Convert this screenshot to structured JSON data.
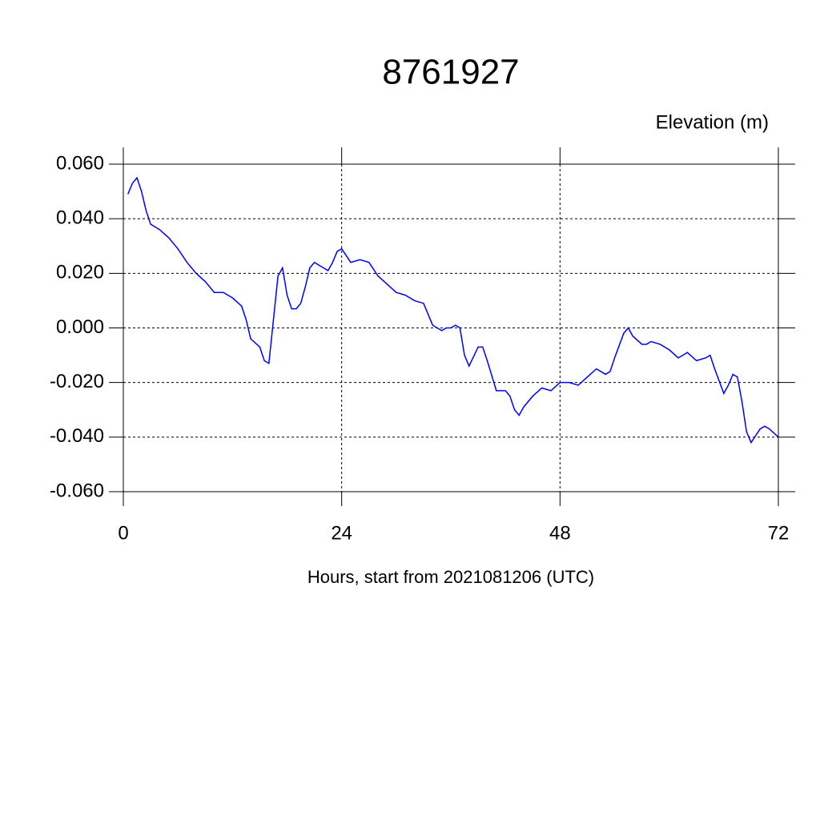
{
  "chart_data": {
    "type": "line",
    "title": "8761927",
    "ylabel": "Elevation (m)",
    "xlabel": "Hours, start from 2021081206 (UTC)",
    "x": [
      0.5,
      1,
      1.5,
      2,
      2.5,
      3,
      4,
      5,
      6,
      7,
      8,
      9,
      10,
      11,
      12,
      13,
      13.5,
      14,
      15,
      15.5,
      16,
      17,
      17.5,
      18,
      18.5,
      19,
      19.5,
      20,
      20.5,
      21,
      21.5,
      22,
      22.5,
      23,
      23.5,
      24,
      25,
      26,
      27,
      28,
      29,
      30,
      31,
      32,
      33,
      34,
      35,
      35.5,
      36,
      36.5,
      37,
      37.5,
      38,
      39,
      39.5,
      40,
      41,
      42,
      42.5,
      43,
      43.5,
      44,
      45,
      46,
      47,
      48,
      49,
      50,
      51,
      52,
      53,
      53.5,
      54,
      55,
      55.5,
      56,
      57,
      57.5,
      58,
      59,
      60,
      61,
      62,
      63,
      64,
      64.5,
      65,
      66,
      66.5,
      67,
      67.5,
      68,
      68.5,
      69,
      70,
      70.5,
      71,
      72
    ],
    "series": [
      {
        "name": "Elevation",
        "color": "#0000ff",
        "values": [
          0.049,
          0.053,
          0.055,
          0.05,
          0.043,
          0.038,
          0.036,
          0.033,
          0.029,
          0.024,
          0.02,
          0.017,
          0.013,
          0.013,
          0.011,
          0.008,
          0.003,
          -0.004,
          -0.007,
          -0.012,
          -0.013,
          0.019,
          0.022,
          0.012,
          0.007,
          0.007,
          0.009,
          0.015,
          0.022,
          0.024,
          0.023,
          0.022,
          0.021,
          0.024,
          0.028,
          0.029,
          0.024,
          0.025,
          0.024,
          0.019,
          0.016,
          0.013,
          0.012,
          0.01,
          0.009,
          0.001,
          -0.001,
          0,
          0,
          0.001,
          0,
          -0.01,
          -0.014,
          -0.007,
          -0.007,
          -0.012,
          -0.023,
          -0.023,
          -0.025,
          -0.03,
          -0.032,
          -0.029,
          -0.025,
          -0.022,
          -0.023,
          -0.02,
          -0.02,
          -0.021,
          -0.018,
          -0.015,
          -0.017,
          -0.016,
          -0.011,
          -0.002,
          0,
          -0.003,
          -0.006,
          -0.006,
          -0.005,
          -0.006,
          -0.008,
          -0.011,
          -0.009,
          -0.012,
          -0.011,
          -0.01,
          -0.015,
          -0.024,
          -0.021,
          -0.017,
          -0.018,
          -0.027,
          -0.038,
          -0.042,
          -0.037,
          -0.036,
          -0.037,
          -0.04
        ]
      }
    ],
    "xlim": [
      0,
      72
    ],
    "xticks": [
      0,
      24,
      48,
      72
    ],
    "ylim": [
      -0.06,
      0.06
    ],
    "yticks": [
      {
        "value": -0.06,
        "label": "-0.060"
      },
      {
        "value": -0.04,
        "label": "-0.040"
      },
      {
        "value": -0.02,
        "label": "-0.020"
      },
      {
        "value": 0,
        "label": "0.000"
      },
      {
        "value": 0.02,
        "label": "0.020"
      },
      {
        "value": 0.04,
        "label": "0.040"
      },
      {
        "value": 0.06,
        "label": "0.060"
      }
    ],
    "grid": true
  }
}
